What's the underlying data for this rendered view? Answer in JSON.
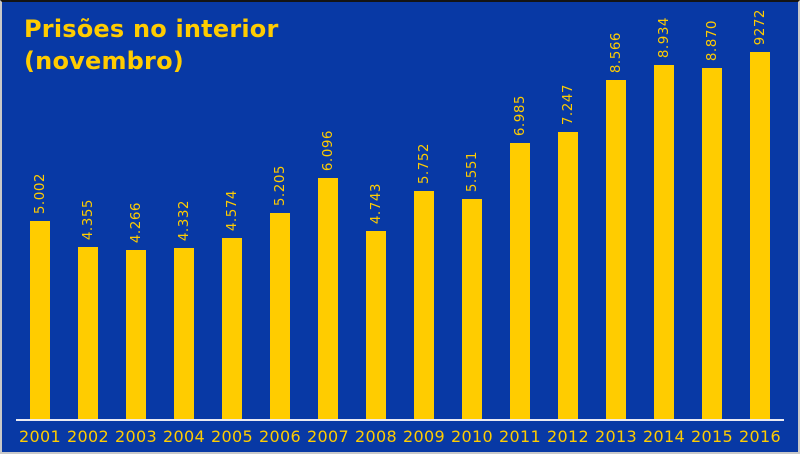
{
  "frame": {
    "bg_color": "#0839A5",
    "top_border_color": "#141414",
    "outer_border_color": "#C9C9C9"
  },
  "title": {
    "line1": "Prisões no interior",
    "line2": "(novembro)",
    "color": "#FFCC00"
  },
  "chart_data": {
    "type": "bar",
    "title": "Prisões no interior (novembro)",
    "categories": [
      "2001",
      "2002",
      "2003",
      "2004",
      "2005",
      "2006",
      "2007",
      "2008",
      "2009",
      "2010",
      "2011",
      "2012",
      "2013",
      "2014",
      "2015",
      "2016"
    ],
    "values": [
      5002,
      4355,
      4266,
      4332,
      4574,
      5205,
      6096,
      4743,
      5752,
      5551,
      6985,
      7247,
      8566,
      8934,
      8870,
      9272
    ],
    "value_labels": [
      "5.002",
      "4.355",
      "4.266",
      "4.332",
      "4.574",
      "5.205",
      "6.096",
      "4.743",
      "5.752",
      "5.551",
      "6.985",
      "7.247",
      "8.566",
      "8.934",
      "8.870",
      "9272"
    ],
    "xlabel": "",
    "ylabel": "",
    "ylim": [
      0,
      9500
    ],
    "grid": false,
    "legend": "none",
    "bar_color": "#FFCC00",
    "value_label_color": "#FFCC00",
    "tick_label_color": "#FFCC00",
    "axis_line_color": "#EAEAF2"
  }
}
